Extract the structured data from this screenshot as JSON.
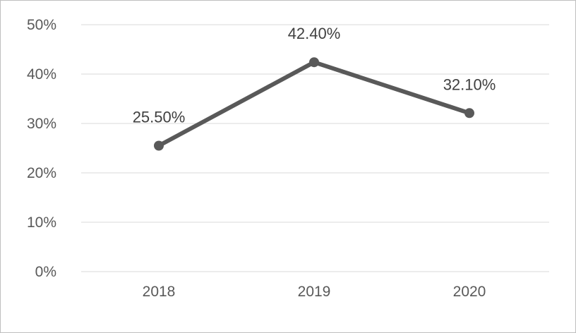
{
  "chart_data": {
    "type": "line",
    "title": "",
    "xlabel": "",
    "ylabel": "",
    "categories": [
      "2018",
      "2019",
      "2020"
    ],
    "series": [
      {
        "values": [
          25.5,
          42.4,
          32.1
        ],
        "data_labels": [
          "25.50%",
          "42.40%",
          "32.10%"
        ],
        "color": "#595959"
      }
    ],
    "ylim": [
      0,
      50
    ],
    "y_ticks": [
      {
        "value": 0,
        "label": "0%"
      },
      {
        "value": 10,
        "label": "10%"
      },
      {
        "value": 20,
        "label": "20%"
      },
      {
        "value": 30,
        "label": "30%"
      },
      {
        "value": 40,
        "label": "40%"
      },
      {
        "value": 50,
        "label": "50%"
      }
    ],
    "grid": true,
    "legend": "none",
    "gridline_color": "#d9d9d9"
  }
}
